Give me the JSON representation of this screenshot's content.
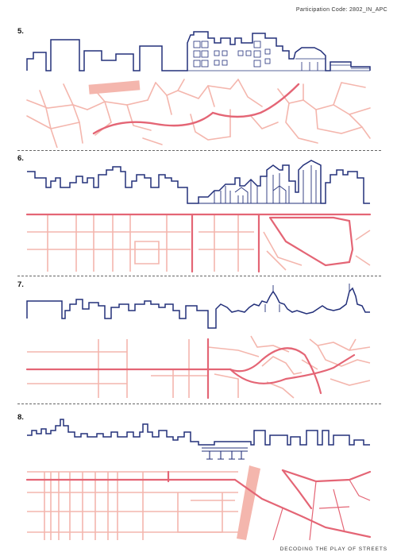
{
  "header": {
    "participation_code": "Participation Code: 2802_IN_APC"
  },
  "footer": {
    "title": "DECODING THE PLAY OF STREETS"
  },
  "colors": {
    "skyline": "#23307a",
    "street_light": "#f4b6ad",
    "street_main": "#e46575",
    "highlight": "#f4b6ad",
    "separator": "#666666"
  },
  "panels": [
    {
      "number": "5."
    },
    {
      "number": "6."
    },
    {
      "number": "7."
    },
    {
      "number": "8."
    }
  ]
}
